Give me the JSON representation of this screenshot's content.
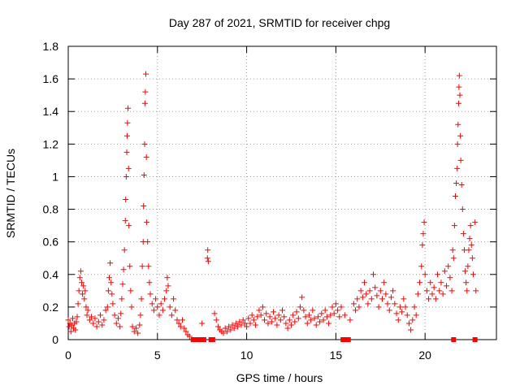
{
  "chart_data": {
    "type": "scatter",
    "title": "Day 287 of 2021, SRMTID for receiver chpg",
    "xlabel": "GPS time / hours",
    "ylabel": "SRMTID / TECUs",
    "xlim": [
      0,
      24
    ],
    "ylim": [
      0,
      1.8
    ],
    "xticks": [
      0,
      5,
      10,
      15,
      20
    ],
    "xtick_labels": [
      "0",
      "5",
      "10",
      "15",
      "20"
    ],
    "yticks": [
      0,
      0.2,
      0.4,
      0.6,
      0.8,
      1.0,
      1.2,
      1.4,
      1.6,
      1.8
    ],
    "ytick_labels": [
      "0",
      "0.2",
      "0.4",
      "0.6",
      "0.8",
      "1",
      "1.2",
      "1.4",
      "1.6",
      "1.8"
    ],
    "grid": true,
    "marker": "+",
    "color": "#ff0000",
    "series": [
      {
        "name": "SRMTID",
        "points": [
          [
            0.0,
            0.12
          ],
          [
            0.05,
            0.08
          ],
          [
            0.1,
            0.1
          ],
          [
            0.15,
            0.05
          ],
          [
            0.2,
            0.09
          ],
          [
            0.25,
            0.13
          ],
          [
            0.3,
            0.07
          ],
          [
            0.35,
            0.1
          ],
          [
            0.4,
            0.06
          ],
          [
            0.45,
            0.11
          ],
          [
            0.5,
            0.14
          ],
          [
            0.55,
            0.22
          ],
          [
            0.6,
            0.3
          ],
          [
            0.65,
            0.38
          ],
          [
            0.7,
            0.42
          ],
          [
            0.75,
            0.35
          ],
          [
            0.8,
            0.28
          ],
          [
            0.85,
            0.33
          ],
          [
            0.9,
            0.25
          ],
          [
            0.95,
            0.3
          ],
          [
            1.0,
            0.2
          ],
          [
            1.05,
            0.15
          ],
          [
            1.1,
            0.18
          ],
          [
            1.2,
            0.12
          ],
          [
            1.3,
            0.14
          ],
          [
            1.4,
            0.1
          ],
          [
            1.5,
            0.13
          ],
          [
            1.6,
            0.08
          ],
          [
            1.7,
            0.11
          ],
          [
            1.8,
            0.15
          ],
          [
            1.9,
            0.09
          ],
          [
            2.0,
            0.12
          ],
          [
            2.1,
            0.18
          ],
          [
            2.2,
            0.2
          ],
          [
            2.25,
            0.3
          ],
          [
            2.3,
            0.38
          ],
          [
            2.35,
            0.47
          ],
          [
            2.4,
            0.35
          ],
          [
            2.45,
            0.28
          ],
          [
            2.5,
            0.22
          ],
          [
            2.6,
            0.15
          ],
          [
            2.7,
            0.1
          ],
          [
            2.8,
            0.13
          ],
          [
            2.9,
            0.08
          ],
          [
            2.95,
            0.16
          ],
          [
            3.0,
            0.25
          ],
          [
            3.05,
            0.34
          ],
          [
            3.1,
            0.43
          ],
          [
            3.15,
            0.55
          ],
          [
            3.2,
            0.73
          ],
          [
            3.22,
            0.86
          ],
          [
            3.25,
            1.0
          ],
          [
            3.28,
            1.15
          ],
          [
            3.3,
            1.25
          ],
          [
            3.32,
            1.33
          ],
          [
            3.35,
            1.42
          ],
          [
            3.38,
            1.05
          ],
          [
            3.4,
            0.7
          ],
          [
            3.45,
            0.45
          ],
          [
            3.5,
            0.3
          ],
          [
            3.55,
            0.2
          ],
          [
            3.6,
            0.08
          ],
          [
            3.7,
            0.05
          ],
          [
            3.8,
            0.07
          ],
          [
            3.9,
            0.04
          ],
          [
            4.0,
            0.09
          ],
          [
            4.05,
            0.15
          ],
          [
            4.1,
            0.25
          ],
          [
            4.15,
            0.45
          ],
          [
            4.2,
            0.6
          ],
          [
            4.22,
            0.82
          ],
          [
            4.25,
            1.01
          ],
          [
            4.28,
            1.2
          ],
          [
            4.3,
            1.45
          ],
          [
            4.32,
            1.52
          ],
          [
            4.35,
            1.63
          ],
          [
            4.38,
            1.12
          ],
          [
            4.4,
            0.72
          ],
          [
            4.45,
            0.6
          ],
          [
            4.5,
            0.45
          ],
          [
            4.55,
            0.35
          ],
          [
            4.6,
            0.28
          ],
          [
            4.7,
            0.22
          ],
          [
            4.8,
            0.18
          ],
          [
            4.9,
            0.25
          ],
          [
            5.0,
            0.2
          ],
          [
            5.1,
            0.15
          ],
          [
            5.2,
            0.22
          ],
          [
            5.3,
            0.18
          ],
          [
            5.4,
            0.25
          ],
          [
            5.5,
            0.3
          ],
          [
            5.55,
            0.38
          ],
          [
            5.6,
            0.33
          ],
          [
            5.7,
            0.2
          ],
          [
            5.8,
            0.15
          ],
          [
            5.9,
            0.25
          ],
          [
            6.0,
            0.18
          ],
          [
            6.1,
            0.12
          ],
          [
            6.2,
            0.1
          ],
          [
            6.3,
            0.08
          ],
          [
            6.4,
            0.12
          ],
          [
            6.5,
            0.07
          ],
          [
            6.6,
            0.05
          ],
          [
            6.7,
            0.03
          ],
          [
            6.8,
            0.02
          ],
          [
            7.5,
            0.1
          ],
          [
            7.8,
            0.5
          ],
          [
            7.82,
            0.55
          ],
          [
            7.85,
            0.48
          ],
          [
            8.2,
            0.16
          ],
          [
            8.3,
            0.12
          ],
          [
            8.4,
            0.08
          ],
          [
            8.5,
            0.06
          ],
          [
            8.6,
            0.05
          ],
          [
            8.7,
            0.04
          ],
          [
            8.8,
            0.07
          ],
          [
            8.9,
            0.05
          ],
          [
            9.0,
            0.08
          ],
          [
            9.1,
            0.06
          ],
          [
            9.2,
            0.09
          ],
          [
            9.3,
            0.07
          ],
          [
            9.4,
            0.1
          ],
          [
            9.5,
            0.08
          ],
          [
            9.6,
            0.11
          ],
          [
            9.7,
            0.09
          ],
          [
            9.8,
            0.12
          ],
          [
            9.9,
            0.1
          ],
          [
            10.0,
            0.08
          ],
          [
            10.1,
            0.13
          ],
          [
            10.2,
            0.1
          ],
          [
            10.3,
            0.15
          ],
          [
            10.4,
            0.12
          ],
          [
            10.5,
            0.09
          ],
          [
            10.6,
            0.14
          ],
          [
            10.7,
            0.18
          ],
          [
            10.8,
            0.15
          ],
          [
            10.9,
            0.2
          ],
          [
            11.0,
            0.12
          ],
          [
            11.1,
            0.16
          ],
          [
            11.2,
            0.1
          ],
          [
            11.3,
            0.14
          ],
          [
            11.4,
            0.11
          ],
          [
            11.5,
            0.17
          ],
          [
            11.6,
            0.13
          ],
          [
            11.7,
            0.09
          ],
          [
            11.8,
            0.15
          ],
          [
            11.9,
            0.12
          ],
          [
            12.0,
            0.18
          ],
          [
            12.1,
            0.14
          ],
          [
            12.2,
            0.1
          ],
          [
            12.3,
            0.07
          ],
          [
            12.4,
            0.12
          ],
          [
            12.5,
            0.09
          ],
          [
            12.6,
            0.15
          ],
          [
            12.7,
            0.11
          ],
          [
            12.8,
            0.17
          ],
          [
            12.9,
            0.13
          ],
          [
            13.0,
            0.2
          ],
          [
            13.1,
            0.26
          ],
          [
            13.2,
            0.18
          ],
          [
            13.3,
            0.14
          ],
          [
            13.4,
            0.1
          ],
          [
            13.5,
            0.15
          ],
          [
            13.6,
            0.12
          ],
          [
            13.7,
            0.18
          ],
          [
            13.8,
            0.13
          ],
          [
            13.9,
            0.09
          ],
          [
            14.0,
            0.14
          ],
          [
            14.1,
            0.11
          ],
          [
            14.2,
            0.16
          ],
          [
            14.3,
            0.12
          ],
          [
            14.4,
            0.18
          ],
          [
            14.5,
            0.14
          ],
          [
            14.6,
            0.1
          ],
          [
            14.7,
            0.15
          ],
          [
            14.8,
            0.2
          ],
          [
            14.9,
            0.16
          ],
          [
            15.0,
            0.22
          ],
          [
            15.1,
            0.18
          ],
          [
            15.2,
            0.14
          ],
          [
            15.3,
            0.2
          ],
          [
            15.5,
            0.15
          ],
          [
            15.8,
            0.12
          ],
          [
            16.0,
            0.22
          ],
          [
            16.1,
            0.18
          ],
          [
            16.2,
            0.25
          ],
          [
            16.3,
            0.2
          ],
          [
            16.4,
            0.3
          ],
          [
            16.5,
            0.26
          ],
          [
            16.6,
            0.35
          ],
          [
            16.7,
            0.28
          ],
          [
            16.8,
            0.22
          ],
          [
            16.9,
            0.3
          ],
          [
            17.0,
            0.25
          ],
          [
            17.1,
            0.4
          ],
          [
            17.2,
            0.32
          ],
          [
            17.3,
            0.27
          ],
          [
            17.4,
            0.2
          ],
          [
            17.5,
            0.3
          ],
          [
            17.6,
            0.25
          ],
          [
            17.7,
            0.35
          ],
          [
            17.8,
            0.28
          ],
          [
            17.9,
            0.22
          ],
          [
            18.0,
            0.18
          ],
          [
            18.1,
            0.26
          ],
          [
            18.2,
            0.3
          ],
          [
            18.3,
            0.22
          ],
          [
            18.4,
            0.16
          ],
          [
            18.5,
            0.12
          ],
          [
            18.6,
            0.2
          ],
          [
            18.7,
            0.17
          ],
          [
            18.8,
            0.25
          ],
          [
            18.9,
            0.2
          ],
          [
            19.0,
            0.15
          ],
          [
            19.1,
            0.1
          ],
          [
            19.2,
            0.06
          ],
          [
            19.3,
            0.12
          ],
          [
            19.4,
            0.2
          ],
          [
            19.5,
            0.15
          ],
          [
            19.6,
            0.28
          ],
          [
            19.7,
            0.35
          ],
          [
            19.8,
            0.45
          ],
          [
            19.85,
            0.58
          ],
          [
            19.9,
            0.65
          ],
          [
            19.95,
            0.72
          ],
          [
            20.0,
            0.4
          ],
          [
            20.1,
            0.3
          ],
          [
            20.2,
            0.25
          ],
          [
            20.3,
            0.35
          ],
          [
            20.4,
            0.28
          ],
          [
            20.5,
            0.32
          ],
          [
            20.6,
            0.25
          ],
          [
            20.7,
            0.4
          ],
          [
            20.8,
            0.3
          ],
          [
            20.9,
            0.35
          ],
          [
            21.0,
            0.28
          ],
          [
            21.1,
            0.42
          ],
          [
            21.2,
            0.33
          ],
          [
            21.3,
            0.45
          ],
          [
            21.4,
            0.38
          ],
          [
            21.5,
            0.3
          ],
          [
            21.55,
            0.55
          ],
          [
            21.6,
            0.5
          ],
          [
            21.65,
            0.7
          ],
          [
            21.7,
            0.88
          ],
          [
            21.75,
            0.96
          ],
          [
            21.8,
            1.05
          ],
          [
            21.82,
            1.2
          ],
          [
            21.85,
            1.32
          ],
          [
            21.88,
            1.45
          ],
          [
            21.9,
            1.55
          ],
          [
            21.92,
            1.62
          ],
          [
            21.95,
            1.5
          ],
          [
            21.98,
            1.25
          ],
          [
            22.0,
            1.1
          ],
          [
            22.05,
            0.95
          ],
          [
            22.1,
            0.8
          ],
          [
            22.15,
            0.65
          ],
          [
            22.2,
            0.55
          ],
          [
            22.25,
            0.42
          ],
          [
            22.3,
            0.35
          ],
          [
            22.35,
            0.3
          ],
          [
            22.4,
            0.45
          ],
          [
            22.45,
            0.55
          ],
          [
            22.5,
            0.62
          ],
          [
            22.55,
            0.7
          ],
          [
            22.6,
            0.58
          ],
          [
            22.65,
            0.5
          ],
          [
            22.7,
            0.4
          ],
          [
            22.8,
            0.72
          ],
          [
            22.85,
            0.3
          ]
        ]
      }
    ],
    "gap_markers_x": [
      7.0,
      7.2,
      7.4,
      7.6,
      8.0,
      8.1,
      15.4,
      15.5,
      15.6,
      15.7,
      21.6,
      22.8
    ]
  }
}
